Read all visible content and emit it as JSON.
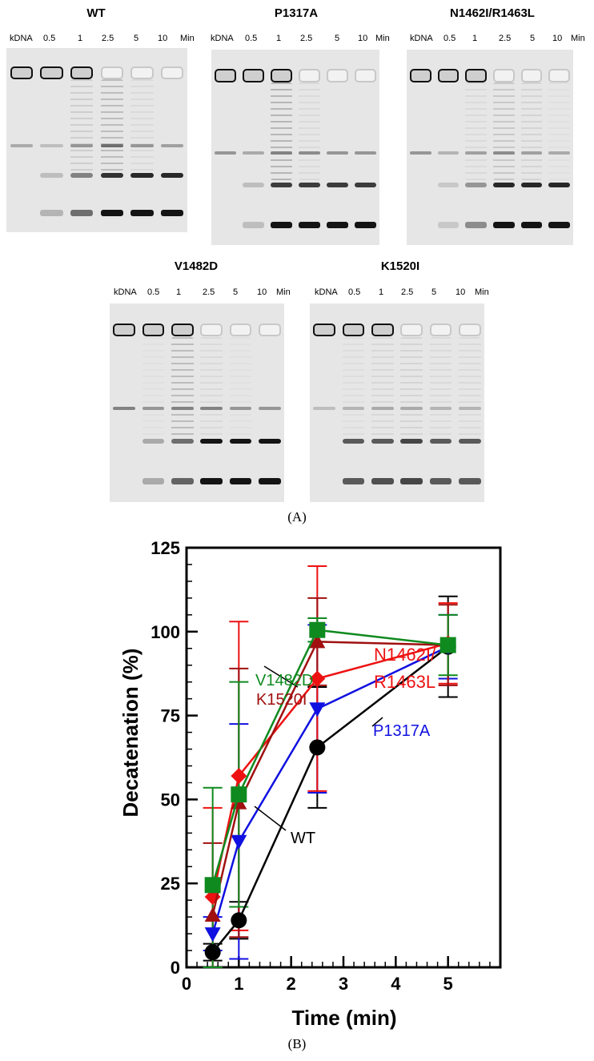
{
  "panel_a": {
    "label": "(A)",
    "lane_labels": [
      "kDNA",
      "0.5",
      "1",
      "2.5",
      "5",
      "10",
      "Min"
    ],
    "gels": [
      {
        "title": "WT",
        "wells": [
          1,
          1,
          1,
          0,
          0,
          0
        ],
        "mid": [
          0.25,
          0.15,
          0.35,
          0.55,
          0.35,
          0.3
        ],
        "nicked": [
          0,
          0.15,
          0.45,
          0.85,
          0.9,
          0.9
        ],
        "mono": [
          0,
          0.2,
          0.55,
          1,
          1,
          1
        ],
        "smear": [
          0,
          0,
          0.4,
          0.7,
          0.2,
          0
        ]
      },
      {
        "title": "P1317A",
        "wells": [
          1,
          1,
          1,
          0,
          0,
          0
        ],
        "mid": [
          0.35,
          0.25,
          0.45,
          0.4,
          0.35,
          0.35
        ],
        "nicked": [
          0,
          0.15,
          0.8,
          0.8,
          0.8,
          0.8
        ],
        "mono": [
          0,
          0.15,
          1,
          1,
          1,
          1
        ],
        "smear": [
          0,
          0,
          0.8,
          0.2,
          0,
          0
        ]
      },
      {
        "title": "N1462I/R1463L",
        "wells": [
          1,
          1,
          1,
          0,
          0,
          0
        ],
        "mid": [
          0.35,
          0.2,
          0.3,
          0.4,
          0.3,
          0.25
        ],
        "nicked": [
          0,
          0.1,
          0.35,
          0.9,
          0.9,
          0.9
        ],
        "mono": [
          0,
          0.1,
          0.4,
          1,
          1,
          1
        ],
        "smear": [
          0,
          0,
          0.2,
          0.5,
          0.3,
          0.1
        ]
      },
      {
        "title": "V1482D",
        "wells": [
          1,
          1,
          1,
          0,
          0,
          0
        ],
        "mid": [
          0.45,
          0.35,
          0.45,
          0.45,
          0.35,
          0.35
        ],
        "nicked": [
          0,
          0.25,
          0.55,
          1,
          1,
          1
        ],
        "mono": [
          0,
          0.25,
          0.6,
          1,
          1,
          1
        ],
        "smear": [
          0,
          0.1,
          0.7,
          0.2,
          0.1,
          0
        ]
      },
      {
        "title": "K1520I",
        "wells": [
          1,
          1,
          1,
          0,
          0,
          0
        ],
        "mid": [
          0.15,
          0.2,
          0.25,
          0.25,
          0.2,
          0.2
        ],
        "nicked": [
          0,
          0.65,
          0.65,
          0.75,
          0.65,
          0.65
        ],
        "mono": [
          0,
          0.65,
          0.7,
          0.75,
          0.65,
          0.65
        ],
        "smear": [
          0,
          0.15,
          0.25,
          0.3,
          0.2,
          0.2
        ]
      }
    ]
  },
  "panel_b": {
    "label": "(B)"
  },
  "chart_data": {
    "type": "line",
    "xlabel": "Time (min)",
    "ylabel": "Decatenation (%)",
    "xlim": [
      0,
      6
    ],
    "ylim": [
      0,
      125
    ],
    "xticks": [
      0,
      1,
      2,
      3,
      4,
      5
    ],
    "yticks": [
      0,
      25,
      50,
      75,
      100,
      125
    ],
    "x_minor_step": 0.2,
    "y_minor_step": 5,
    "series": [
      {
        "name": "WT",
        "color": "#000000",
        "marker": "circle",
        "x": [
          0.5,
          1,
          2.5,
          5
        ],
        "y": [
          4.5,
          14,
          65.5,
          95.5
        ],
        "err": [
          2.5,
          5.5,
          18,
          15
        ]
      },
      {
        "name": "P1317A",
        "color": "#1010e0",
        "marker": "triangle-down",
        "x": [
          0.5,
          1,
          2.5,
          5
        ],
        "y": [
          10,
          37.5,
          77,
          95.5
        ],
        "err": [
          5,
          35,
          25,
          9.5
        ]
      },
      {
        "name": "N1462I/R1463L",
        "color": "#ee1111",
        "marker": "diamond",
        "x": [
          0.5,
          1,
          2.5,
          5
        ],
        "y": [
          21,
          57,
          86,
          96.5
        ],
        "err": [
          26.5,
          46,
          33.5,
          12
        ]
      },
      {
        "name": "K1520I",
        "color": "#a01010",
        "marker": "triangle-up",
        "x": [
          0.5,
          1,
          2.5,
          5
        ],
        "y": [
          15.5,
          49,
          97,
          96
        ],
        "err": [
          21.5,
          40,
          13,
          12
        ]
      },
      {
        "name": "V1482D",
        "color": "#0f8a1f",
        "marker": "square",
        "x": [
          0.5,
          1,
          2.5,
          5
        ],
        "y": [
          24.5,
          51.5,
          100.5,
          96
        ],
        "err": [
          29,
          33.5,
          3.5,
          9
        ]
      }
    ],
    "annotations": [
      {
        "text": "WT",
        "color": "#000000"
      },
      {
        "text": "P1317A",
        "color": "#1010e0"
      },
      {
        "text": "N1462I/",
        "color": "#ee1111"
      },
      {
        "text": "R1463L",
        "color": "#ee1111"
      },
      {
        "text": "K1520I",
        "color": "#a01010"
      },
      {
        "text": "V1482D",
        "color": "#0f8a1f"
      }
    ]
  }
}
